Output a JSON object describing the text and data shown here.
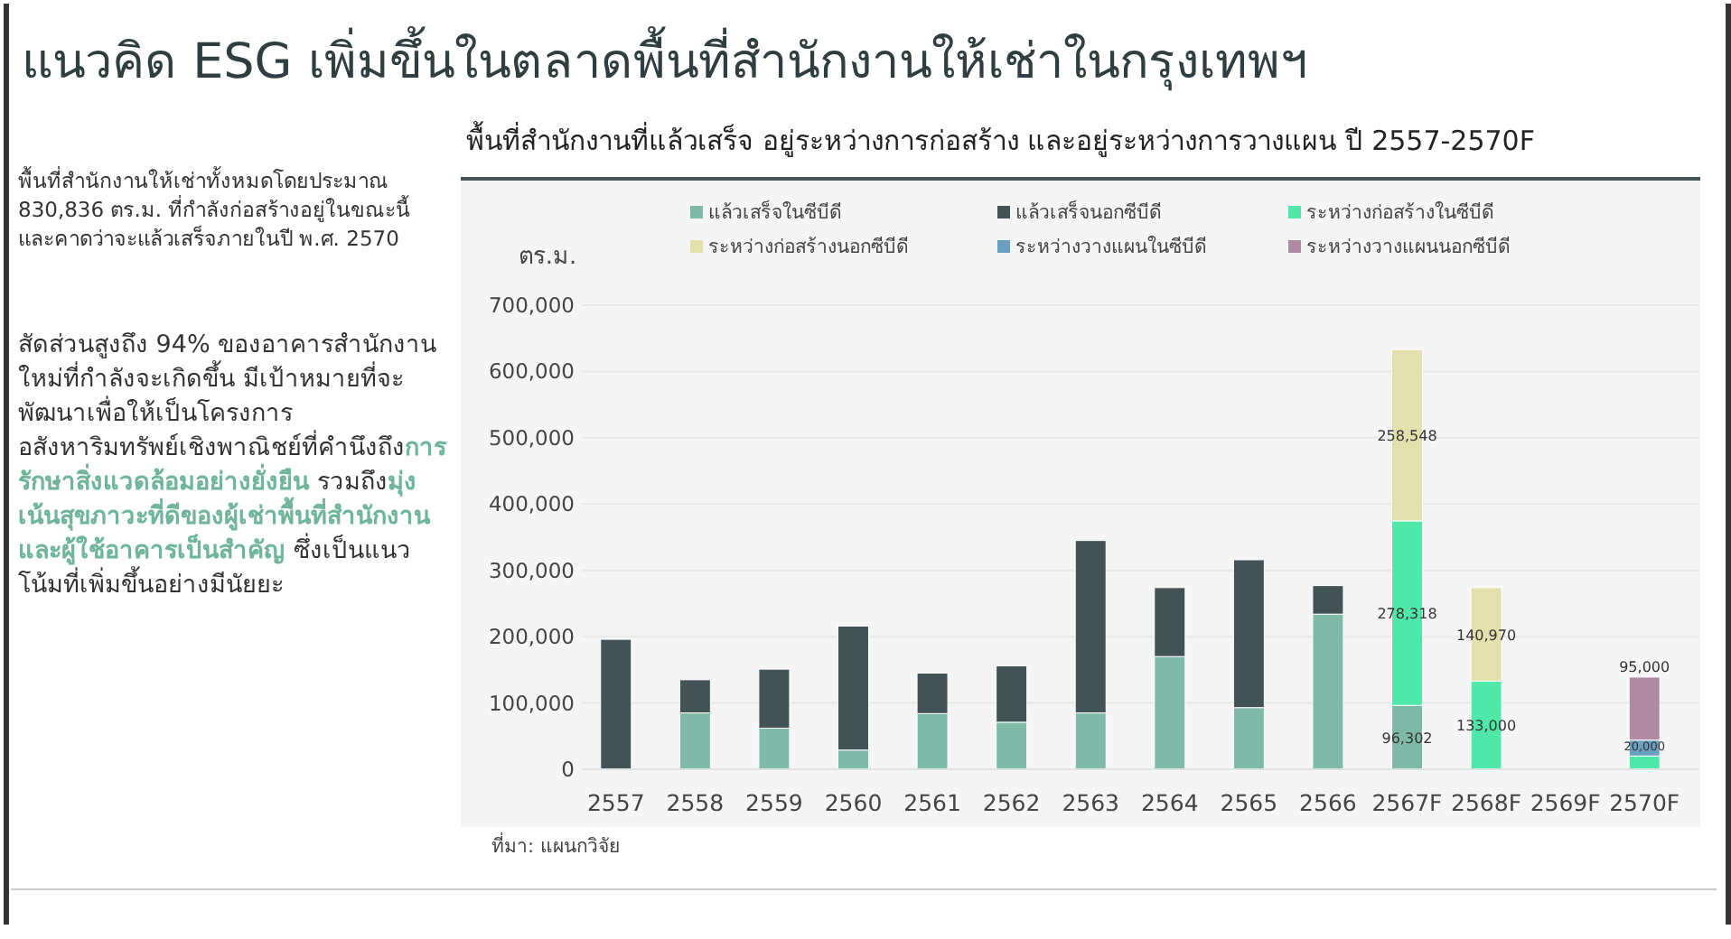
{
  "chart_data": {
    "type": "bar",
    "stacked": true,
    "title": "แนวคิด ESG เพิ่มขึ้นในตลาดพื้นที่สำนักงานให้เช่าในกรุงเทพฯ",
    "subtitle": "พื้นที่สำนักงานที่แล้วเสร็จ อยู่ระหว่างการก่อสร้าง และอยู่ระหว่างการวางแผน ปี 2557-2570F",
    "ylabel": "ตร.ม.",
    "categories": [
      "2557",
      "2558",
      "2559",
      "2560",
      "2561",
      "2562",
      "2563",
      "2564",
      "2565",
      "2566",
      "2567F",
      "2568F",
      "2569F",
      "2570F"
    ],
    "series": [
      {
        "name": "แล้วเสร็จในซีบีดี",
        "color": "#7fb9a8",
        "values": [
          0,
          85000,
          62000,
          29000,
          84000,
          71000,
          85000,
          170000,
          93000,
          234000,
          96302,
          null,
          null,
          null
        ],
        "value_labels": [
          null,
          null,
          null,
          null,
          null,
          null,
          null,
          null,
          null,
          null,
          "96,302",
          null,
          null,
          null
        ]
      },
      {
        "name": "แล้วเสร็จนอกซีบีดี",
        "color": "#435254",
        "values": [
          196000,
          50000,
          89000,
          187000,
          61000,
          85000,
          260000,
          104000,
          223000,
          43000,
          null,
          null,
          null,
          null
        ]
      },
      {
        "name": "ระหว่างก่อสร้างในซีบีดี",
        "color": "#50e8a8",
        "values": [
          null,
          null,
          null,
          null,
          null,
          null,
          null,
          null,
          null,
          null,
          278318,
          133000,
          null,
          20000
        ],
        "value_labels": [
          null,
          null,
          null,
          null,
          null,
          null,
          null,
          null,
          null,
          null,
          "278,318",
          "133,000",
          null,
          "20,000"
        ]
      },
      {
        "name": "ระหว่างก่อสร้างนอกซีบีดี",
        "color": "#e3e0ae",
        "values": [
          null,
          null,
          null,
          null,
          null,
          null,
          null,
          null,
          null,
          null,
          258548,
          140970,
          null,
          null
        ],
        "value_labels": [
          null,
          null,
          null,
          null,
          null,
          null,
          null,
          null,
          null,
          null,
          "258,548",
          "140,970",
          null,
          null
        ]
      },
      {
        "name": "ระหว่างวางแผนในซีบีดี",
        "color": "#6b9fc0",
        "values": [
          null,
          null,
          null,
          null,
          null,
          null,
          null,
          null,
          null,
          null,
          null,
          null,
          null,
          24000
        ]
      },
      {
        "name": "ระหว่างวางแผนนอกซีบีดี",
        "color": "#b089a2",
        "values": [
          null,
          null,
          null,
          null,
          null,
          null,
          null,
          null,
          null,
          null,
          null,
          null,
          null,
          95000
        ],
        "value_labels": [
          null,
          null,
          null,
          null,
          null,
          null,
          null,
          null,
          null,
          null,
          null,
          null,
          null,
          "95,000"
        ]
      }
    ],
    "ylim": [
      0,
      700000
    ],
    "yticks": [
      0,
      {
        "value": 100000,
        "label": "100,000"
      },
      {
        "value": 200000,
        "label": "200,000"
      },
      {
        "value": 300000,
        "label": "300,000"
      },
      {
        "value": 400000,
        "label": "400,000"
      },
      {
        "value": 500000,
        "label": "500,000"
      },
      {
        "value": 600000,
        "label": "600,000"
      },
      {
        "value": 700000,
        "label": "700,000"
      }
    ],
    "grid": "y",
    "legend": "top",
    "annotations": [
      "พื้นที่สำนักงานให้เช่าทั้งหมดโดยประมาณ 830,836 ตร.ม. ที่กำลังก่อสร้างอยู่ในขณะนี้ และคาดว่าจะแล้วเสร็จภายในปี พ.ศ. 2570",
      "สัดส่วนสูงถึง 94% ของอาคารสำนักงานใหม่ที่กำลังจะเกิดขึ้น มีเป้าหมายที่จะพัฒนาเพื่อให้เป็นโครงการอสังหาริมทรัพย์เชิงพาณิชย์ที่คำนึงถึง",
      "การรักษาสิ่งแวดล้อมอย่างยั่งยืน",
      " รวมถึง",
      "มุ่งเน้นสุขภาวะที่ดีของผู้เช่าพื้นที่สำนักงานและผู้ใช้อาคารเป็นสำคัญ",
      " ซึ่งเป็นแนวโน้มที่เพิ่มขึ้นอย่างมีนัยยะ",
      "ที่มา: แผนกวิจัย"
    ]
  }
}
